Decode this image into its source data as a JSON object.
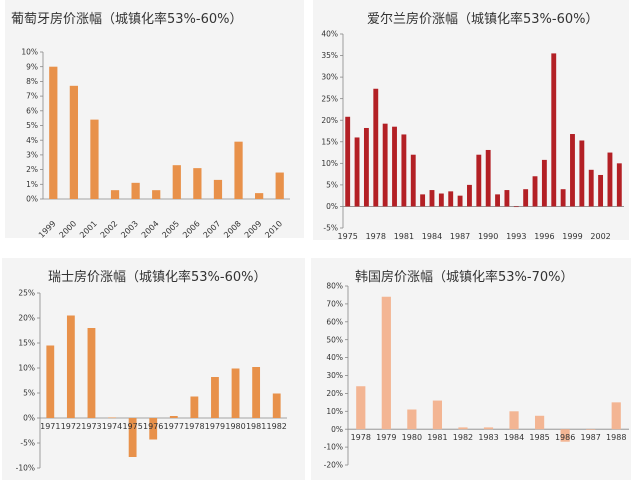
{
  "chart_data": [
    {
      "type": "bar",
      "title": "葡萄牙房价涨幅（城镇化率53%-60%）",
      "categories": [
        "1999",
        "2000",
        "2001",
        "2002",
        "2003",
        "2004",
        "2005",
        "2006",
        "2007",
        "2008",
        "2009",
        "2010"
      ],
      "values": [
        9.0,
        7.7,
        5.4,
        0.6,
        1.1,
        0.6,
        2.3,
        2.1,
        1.3,
        3.9,
        0.4,
        1.8
      ],
      "yticks": [
        "0%",
        "1%",
        "2%",
        "3%",
        "4%",
        "5%",
        "6%",
        "7%",
        "8%",
        "9%",
        "10%"
      ],
      "ylim": [
        0,
        10
      ],
      "color": "#e8914a",
      "grid": false,
      "xlabel": "",
      "ylabel": ""
    },
    {
      "type": "bar",
      "title": "爱尔兰房价涨幅（城镇化率53%-60%）",
      "categories": [
        "1975",
        "1976",
        "1977",
        "1978",
        "1979",
        "1980",
        "1981",
        "1982",
        "1983",
        "1984",
        "1985",
        "1986",
        "1987",
        "1988",
        "1989",
        "1990",
        "1991",
        "1992",
        "1993",
        "1994",
        "1995",
        "1996",
        "1997",
        "1998",
        "1999",
        "2000",
        "2001",
        "2002",
        "2003",
        "2004"
      ],
      "xtick_labels": [
        "1975",
        "1978",
        "1981",
        "1984",
        "1987",
        "1990",
        "1993",
        "1996",
        "1999",
        "2002"
      ],
      "values": [
        20.8,
        16.0,
        18.2,
        27.3,
        19.2,
        18.5,
        16.7,
        12.0,
        2.8,
        3.8,
        3.0,
        3.5,
        2.5,
        5.0,
        12.0,
        13.1,
        2.8,
        3.8,
        0.0,
        4.0,
        7.0,
        10.8,
        35.5,
        4.0,
        16.8,
        15.3,
        8.5,
        7.3,
        12.5,
        10.0
      ],
      "yticks": [
        "-5%",
        "0%",
        "5%",
        "10%",
        "15%",
        "20%",
        "25%",
        "30%",
        "35%",
        "40%"
      ],
      "ylim": [
        -5,
        40
      ],
      "color": "#b32025",
      "grid": false,
      "xlabel": "",
      "ylabel": ""
    },
    {
      "type": "bar",
      "title": "瑞士房价涨幅（城镇化率53%-60%）",
      "categories": [
        "1971",
        "1972",
        "1973",
        "1974",
        "1975",
        "1976",
        "1977",
        "1978",
        "1979",
        "1980",
        "1981",
        "1982"
      ],
      "values": [
        14.5,
        20.5,
        18.0,
        0.1,
        -7.8,
        -4.3,
        0.4,
        4.3,
        8.2,
        9.9,
        10.2,
        4.9
      ],
      "yticks": [
        "-10%",
        "-5%",
        "0%",
        "5%",
        "10%",
        "15%",
        "20%",
        "25%"
      ],
      "ylim": [
        -10,
        25
      ],
      "color": "#e8914a",
      "grid": false,
      "xlabel": "",
      "ylabel": ""
    },
    {
      "type": "bar",
      "title": "韩国房价涨幅（城镇化率53%-70%）",
      "categories": [
        "1978",
        "1979",
        "1980",
        "1981",
        "1982",
        "1983",
        "1984",
        "1985",
        "1986",
        "1987",
        "1988"
      ],
      "values": [
        24.0,
        74.0,
        11.0,
        16.0,
        1.0,
        1.0,
        10.0,
        7.5,
        -7.0,
        0.0,
        15.0
      ],
      "yticks": [
        "-20%",
        "-10%",
        "0%",
        "10%",
        "20%",
        "30%",
        "40%",
        "50%",
        "60%",
        "70%",
        "80%"
      ],
      "ylim": [
        -20,
        80
      ],
      "color": "#f3b593",
      "grid": false,
      "xlabel": "",
      "ylabel": ""
    }
  ]
}
